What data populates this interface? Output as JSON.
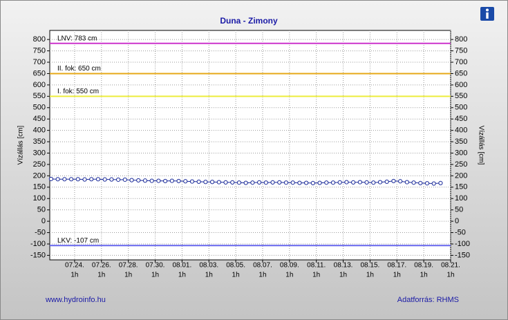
{
  "chart_data": {
    "type": "line",
    "title": "Duna - Zimony",
    "y_label": "Vízállás [cm]",
    "y2_label": "Vízállás [cm]",
    "footer_left": "www.hydroinfo.hu",
    "footer_right": "Adatforrás: RHMS",
    "grid": true,
    "xlim": [
      203.15,
      233
    ],
    "xticks": [
      {
        "value": 205,
        "label": "07.24."
      },
      {
        "value": 207,
        "label": "07.26."
      },
      {
        "value": 209,
        "label": "07.28."
      },
      {
        "value": 211,
        "label": "07.30."
      },
      {
        "value": 213,
        "label": "08.01."
      },
      {
        "value": 215,
        "label": "08.03."
      },
      {
        "value": 217,
        "label": "08.05."
      },
      {
        "value": 219,
        "label": "08.07."
      },
      {
        "value": 221,
        "label": "08.09."
      },
      {
        "value": 223,
        "label": "08.11."
      },
      {
        "value": 225,
        "label": "08.13."
      },
      {
        "value": 227,
        "label": "08.15."
      },
      {
        "value": 229,
        "label": "08.17."
      },
      {
        "value": 231,
        "label": "08.19."
      },
      {
        "value": 233,
        "label": "08.21."
      }
    ],
    "x_tick_sublabel": "1h",
    "ylim": [
      -170,
      840
    ],
    "yticks": [
      -150,
      -100,
      -50,
      0,
      50,
      100,
      150,
      200,
      250,
      300,
      350,
      400,
      450,
      500,
      550,
      600,
      650,
      700,
      750,
      800
    ],
    "reference_lines": [
      {
        "label": "LNV: 783 cm",
        "value": 783,
        "color": "#cc33cc"
      },
      {
        "label": "II. fok: 650 cm",
        "value": 650,
        "color": "#e6a817"
      },
      {
        "label": "I. fok: 550 cm",
        "value": 550,
        "color": "#ecec3c"
      },
      {
        "label": "LKV: -107 cm",
        "value": -107,
        "color": "#6666ee"
      }
    ],
    "x": [
      203.25,
      203.75,
      204.25,
      204.75,
      205.25,
      205.75,
      206.25,
      206.75,
      207.25,
      207.75,
      208.25,
      208.75,
      209.25,
      209.75,
      210.25,
      210.75,
      211.25,
      211.75,
      212.25,
      212.75,
      213.25,
      213.75,
      214.25,
      214.75,
      215.25,
      215.75,
      216.25,
      216.75,
      217.25,
      217.75,
      218.25,
      218.75,
      219.25,
      219.75,
      220.25,
      220.75,
      221.25,
      221.75,
      222.25,
      222.75,
      223.25,
      223.75,
      224.25,
      224.75,
      225.25,
      225.75,
      226.25,
      226.75,
      227.25,
      227.75,
      228.25,
      228.75,
      229.25,
      229.75,
      230.25,
      230.75,
      231.25,
      231.75,
      232.25
    ],
    "series": [
      {
        "color": "#1a2a99",
        "values": [
          186,
          185,
          185,
          185,
          185,
          184,
          185,
          185,
          184,
          184,
          183,
          183,
          181,
          180,
          179,
          178,
          178,
          177,
          178,
          177,
          176,
          175,
          174,
          173,
          173,
          172,
          171,
          171,
          170,
          169,
          170,
          171,
          170,
          171,
          171,
          170,
          170,
          169,
          169,
          168,
          169,
          170,
          170,
          171,
          172,
          171,
          172,
          171,
          170,
          172,
          174,
          177,
          176,
          172,
          170,
          168,
          167,
          166,
          168
        ]
      }
    ]
  }
}
